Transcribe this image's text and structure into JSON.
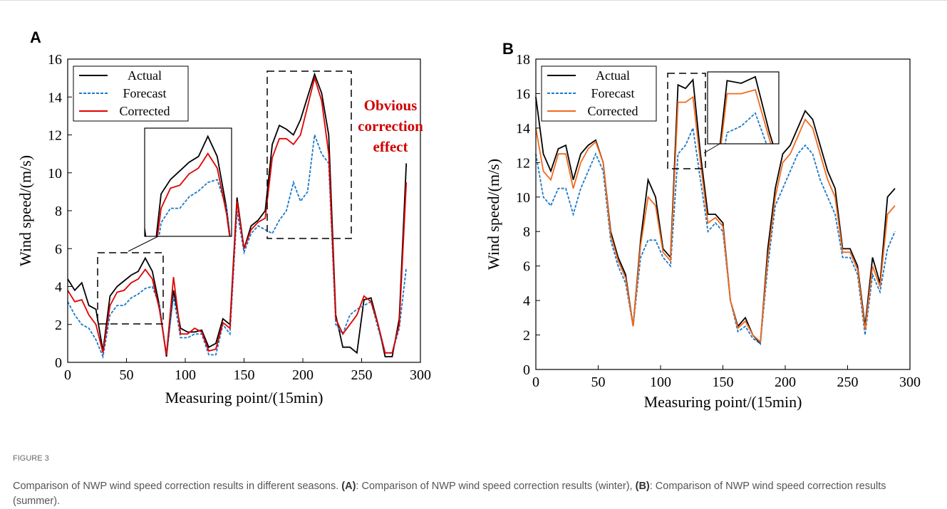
{
  "chart_data": [
    {
      "type": "line",
      "panel": "A",
      "xlabel": "Measuring point/(15min)",
      "ylabel": "Wind speed/(m/s)",
      "x": [
        0,
        6,
        12,
        18,
        24,
        30,
        36,
        42,
        48,
        54,
        60,
        66,
        72,
        78,
        84,
        90,
        96,
        102,
        108,
        114,
        120,
        126,
        132,
        138,
        144,
        150,
        156,
        162,
        168,
        174,
        180,
        186,
        192,
        198,
        204,
        210,
        216,
        222,
        228,
        234,
        240,
        246,
        252,
        258,
        264,
        270,
        276,
        282,
        288
      ],
      "series": [
        {
          "name": "Actual",
          "color": "#000000",
          "style": "solid",
          "values": [
            4.4,
            3.8,
            4.2,
            3.0,
            2.8,
            0.6,
            3.5,
            4.0,
            4.3,
            4.6,
            4.8,
            5.5,
            4.8,
            3.0,
            0.3,
            3.8,
            1.8,
            1.6,
            1.6,
            1.7,
            0.8,
            1.0,
            2.3,
            2.0,
            8.7,
            6.0,
            7.2,
            7.5,
            8.0,
            11.5,
            12.5,
            12.3,
            12.0,
            12.8,
            14.0,
            15.2,
            14.2,
            12.0,
            2.5,
            0.8,
            0.8,
            0.5,
            3.3,
            3.4,
            2.0,
            0.3,
            0.3,
            2.3,
            10.5
          ]
        },
        {
          "name": "Forecast",
          "color": "#1a7ac8",
          "style": "dashed",
          "values": [
            3.2,
            2.5,
            2.0,
            1.8,
            1.2,
            0.3,
            2.5,
            3.0,
            3.0,
            3.4,
            3.6,
            3.9,
            4.0,
            3.0,
            0.4,
            3.5,
            1.3,
            1.3,
            1.5,
            1.5,
            0.4,
            0.4,
            2.0,
            1.5,
            8.0,
            5.8,
            6.8,
            7.2,
            7.0,
            6.8,
            7.5,
            8.0,
            9.5,
            8.5,
            9.0,
            12.0,
            11.0,
            10.5,
            2.0,
            1.5,
            2.5,
            2.8,
            3.0,
            3.2,
            1.8,
            0.5,
            0.5,
            1.8,
            5.0
          ]
        },
        {
          "name": "Corrected",
          "color": "#e00000",
          "style": "solid",
          "values": [
            3.8,
            3.2,
            3.3,
            2.5,
            2.0,
            0.5,
            3.0,
            3.7,
            3.8,
            4.2,
            4.4,
            4.9,
            4.4,
            2.8,
            0.4,
            4.5,
            1.5,
            1.5,
            1.8,
            1.6,
            0.6,
            0.7,
            2.1,
            1.8,
            8.5,
            6.0,
            7.0,
            7.4,
            7.6,
            10.8,
            11.8,
            11.8,
            11.5,
            12.0,
            13.5,
            15.0,
            13.8,
            11.0,
            2.3,
            1.5,
            2.0,
            2.5,
            3.5,
            3.2,
            2.0,
            0.5,
            0.5,
            2.0,
            9.5
          ]
        }
      ],
      "xlim": [
        0,
        300
      ],
      "ylim": [
        0,
        16
      ],
      "xticks": [
        0,
        50,
        100,
        150,
        200,
        250,
        300
      ],
      "yticks": [
        0,
        2,
        4,
        6,
        8,
        10,
        12,
        14,
        16
      ],
      "annotation": [
        "Obvious",
        "correction",
        "effect"
      ]
    },
    {
      "type": "line",
      "panel": "B",
      "xlabel": "Measuring point/(15min)",
      "ylabel": "Wind speed/(m/s)",
      "x": [
        0,
        6,
        12,
        18,
        24,
        30,
        36,
        42,
        48,
        54,
        60,
        66,
        72,
        78,
        84,
        90,
        96,
        102,
        108,
        114,
        120,
        126,
        132,
        138,
        144,
        150,
        156,
        162,
        168,
        174,
        180,
        186,
        192,
        198,
        204,
        210,
        216,
        222,
        228,
        234,
        240,
        246,
        252,
        258,
        264,
        270,
        276,
        282,
        288
      ],
      "series": [
        {
          "name": "Actual",
          "color": "#000000",
          "style": "solid",
          "values": [
            15.8,
            12.5,
            11.5,
            12.8,
            13.0,
            11.0,
            12.5,
            13.0,
            13.3,
            12.0,
            8.0,
            6.5,
            5.5,
            2.5,
            7.5,
            11.0,
            10.0,
            7.0,
            6.5,
            16.5,
            16.3,
            16.8,
            12.5,
            9.0,
            9.0,
            8.5,
            4.0,
            2.5,
            3.0,
            2.0,
            1.5,
            7.0,
            10.5,
            12.5,
            13.0,
            14.0,
            15.0,
            14.5,
            13.0,
            11.5,
            10.5,
            7.0,
            7.0,
            6.0,
            2.5,
            6.5,
            5.0,
            10.0,
            10.5
          ]
        },
        {
          "name": "Forecast",
          "color": "#1a7ac8",
          "style": "dashed",
          "values": [
            12.5,
            10.0,
            9.5,
            10.5,
            10.5,
            9.0,
            10.5,
            11.5,
            12.5,
            11.5,
            7.5,
            6.0,
            5.0,
            2.5,
            6.5,
            7.5,
            7.5,
            6.5,
            6.0,
            12.5,
            13.0,
            14.0,
            11.0,
            8.0,
            8.5,
            8.0,
            4.0,
            2.2,
            2.5,
            1.8,
            1.5,
            6.0,
            9.5,
            10.5,
            11.5,
            12.5,
            13.0,
            12.5,
            11.0,
            10.0,
            9.0,
            6.5,
            6.5,
            5.5,
            2.0,
            5.5,
            4.5,
            7.0,
            8.0
          ]
        },
        {
          "name": "Corrected",
          "color": "#f06a1e",
          "style": "solid",
          "values": [
            14.0,
            11.5,
            11.0,
            12.5,
            12.5,
            10.5,
            12.0,
            12.8,
            13.2,
            12.0,
            7.8,
            6.3,
            5.3,
            2.5,
            7.2,
            10.0,
            9.5,
            6.8,
            6.3,
            15.5,
            15.5,
            15.8,
            12.0,
            8.5,
            8.8,
            8.3,
            4.0,
            2.4,
            2.8,
            2.0,
            1.6,
            6.5,
            10.0,
            12.0,
            12.5,
            13.5,
            14.5,
            14.0,
            12.5,
            11.0,
            10.0,
            6.8,
            6.8,
            5.8,
            2.3,
            6.0,
            4.8,
            9.0,
            9.5
          ]
        }
      ],
      "xlim": [
        0,
        300
      ],
      "ylim": [
        0,
        18
      ],
      "xticks": [
        0,
        50,
        100,
        150,
        200,
        250,
        300
      ],
      "yticks": [
        0,
        2,
        4,
        6,
        8,
        10,
        12,
        14,
        16,
        18
      ]
    }
  ],
  "figure": {
    "label": "FIGURE 3",
    "caption": [
      "Comparison of NWP wind speed correction results in different seasons. ",
      "(A)",
      ": Comparison of NWP wind speed correction results (winter), ",
      "(B)",
      ": Comparison of NWP wind speed correction results (summer)."
    ]
  }
}
